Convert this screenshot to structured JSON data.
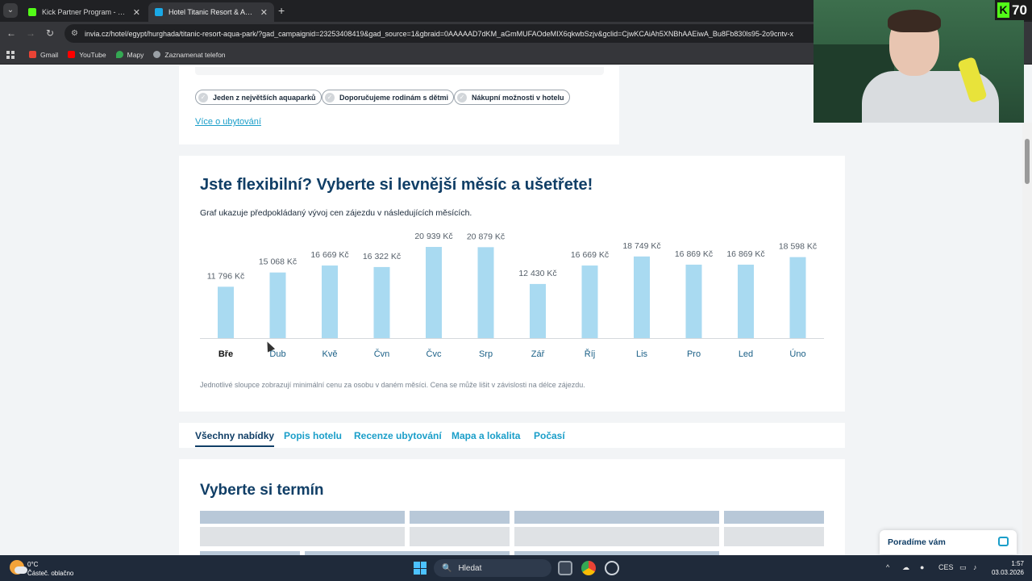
{
  "browser": {
    "tabs": [
      {
        "title": "Kick Partner Program - Kick Das",
        "active": false
      },
      {
        "title": "Hotel Titanic Resort & Aqua Pa",
        "active": true
      }
    ],
    "url": "invia.cz/hotel/egypt/hurghada/titanic-resort-aqua-park/?gad_campaignid=23253408419&gad_source=1&gbraid=0AAAAAD7dKM_aGmMUFAOdeMIX6qkwbSzjv&gclid=CjwKCAiAh5XNBhAAEiwA_Bu8Fb830ls95-2o9cntv-x",
    "bookmarks": [
      "Gmail",
      "YouTube",
      "Mapy",
      "Zaznamenat telefon"
    ]
  },
  "features": {
    "chips": [
      "Jeden z největších aquaparků",
      "Doporučujeme rodinám s dětmi",
      "Nákupní možnosti v hotelu"
    ],
    "more_link": "Více o ubytování"
  },
  "chart_section": {
    "title": "Jste flexibilní? Vyberte si levnější měsíc a ušetřete!",
    "subtitle": "Graf ukazuje předpokládaný vývoj cen zájezdu v následujících měsících.",
    "note": "Jednotlivé sloupce zobrazují minimální cenu za osobu v daném měsíci. Cena se může lišit v závislosti na délce zájezdu."
  },
  "chart_data": {
    "type": "bar",
    "categories": [
      "Bře",
      "Dub",
      "Kvě",
      "Čvn",
      "Čvc",
      "Srp",
      "Zář",
      "Říj",
      "Lis",
      "Pro",
      "Led",
      "Úno"
    ],
    "values": [
      11796,
      15068,
      16669,
      16322,
      20939,
      20879,
      12430,
      16669,
      18749,
      16869,
      16869,
      18598
    ],
    "value_labels": [
      "11 796 Kč",
      "15 068 Kč",
      "16 669 Kč",
      "16 322 Kč",
      "20 939 Kč",
      "20 879 Kč",
      "12 430 Kč",
      "16 669 Kč",
      "18 749 Kč",
      "16 869 Kč",
      "16 869 Kč",
      "18 598 Kč"
    ],
    "selected_category": "Bře",
    "bar_color": "#a9daf1",
    "title": "",
    "xlabel": "",
    "ylabel": "",
    "grid": false
  },
  "page_tabs": [
    "Všechny nabídky",
    "Popis hotelu",
    "Recenze ubytování",
    "Mapa a lokalita",
    "Počasí"
  ],
  "active_tab": "Všechny nabídky",
  "term_section": {
    "title": "Vyberte si termín"
  },
  "help_widget": {
    "label": "Poradíme vám"
  },
  "stream_overlay": {
    "badge_letter": "K",
    "badge_number": "70"
  },
  "taskbar": {
    "weather_temp": "0°C",
    "weather_desc": "Částeč. oblačno",
    "search_placeholder": "Hledat",
    "lang": "CES",
    "time": "1:57",
    "date": "03.03.2026"
  },
  "colors": {
    "accent": "#1a9ec9",
    "heading": "#103e66",
    "kick_green": "#53fc18"
  }
}
